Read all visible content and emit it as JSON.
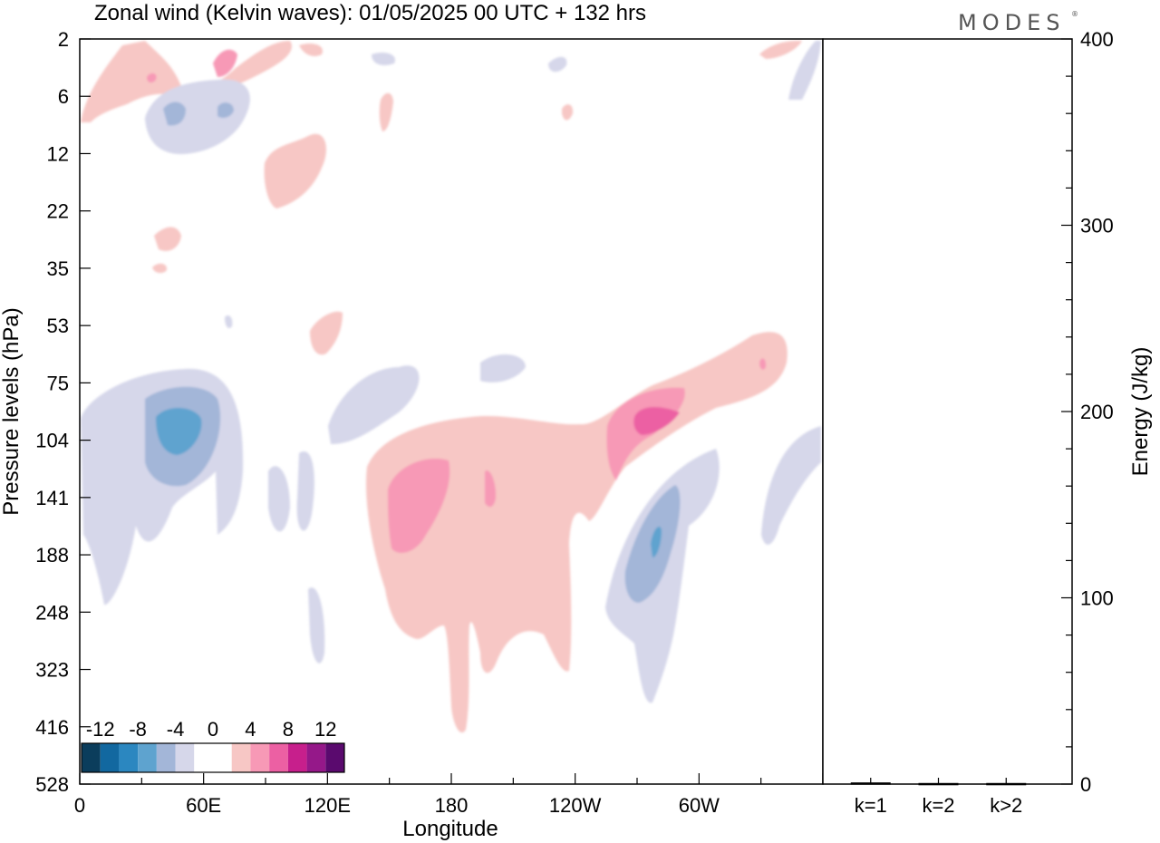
{
  "chart_data": {
    "type": "heatmap",
    "title": "Zonal wind (Kelvin waves):  01/05/2025  00 UTC  + 132 hrs",
    "logo": "MODES",
    "logo_mark": "®",
    "xlabel": "Longitude",
    "ylabel": "Pressure levels (hPa)",
    "x_ticks": [
      "0",
      "60E",
      "120E",
      "180",
      "120W",
      "60W"
    ],
    "y_ticks": [
      "2",
      "6",
      "12",
      "22",
      "35",
      "53",
      "75",
      "104",
      "141",
      "188",
      "248",
      "323",
      "416",
      "528"
    ],
    "colorbar": {
      "labels": [
        "-12",
        "-8",
        "-4",
        "0",
        "4",
        "8",
        "12"
      ],
      "colors": [
        "#0b3d5c",
        "#1268a0",
        "#2b87c0",
        "#5ea3cf",
        "#a3b6d8",
        "#d6d7ea",
        "#ffffff",
        "#ffffff",
        "#f7c7c5",
        "#f799b6",
        "#ec60a3",
        "#c71f8c",
        "#951889",
        "#5a0a6e"
      ]
    },
    "contour_features": [
      {
        "level": -4,
        "lon_range": [
          "0",
          "60E"
        ],
        "p_range": [
          "75",
          "248"
        ],
        "peak": -10
      },
      {
        "level": -4,
        "lon_range": [
          "60W",
          "60W"
        ],
        "p_range": [
          "104",
          "323"
        ],
        "peak": -10
      },
      {
        "level": 4,
        "lon_range": [
          "180",
          "180"
        ],
        "p_range": [
          "104",
          "416"
        ],
        "peak": 7
      },
      {
        "level": 4,
        "lon_range": [
          "120W",
          "60W"
        ],
        "p_range": [
          "53",
          "141"
        ],
        "peak": 9
      },
      {
        "level": -2,
        "lon_range": [
          "0",
          "60E"
        ],
        "p_range": [
          "2",
          "12"
        ],
        "peak": -5
      },
      {
        "level": 2,
        "lon_range": [
          "0",
          "60E"
        ],
        "p_range": [
          "2",
          "12"
        ],
        "peak": 6
      }
    ],
    "energy_panel": {
      "ylabel": "Energy (J/kg)",
      "ylim": [
        0,
        400
      ],
      "y_ticks": [
        "0",
        "100",
        "200",
        "300",
        "400"
      ],
      "categories": [
        "k=1",
        "k=2",
        "k>2"
      ],
      "values": [
        0.4,
        0.1,
        0.1
      ]
    }
  }
}
